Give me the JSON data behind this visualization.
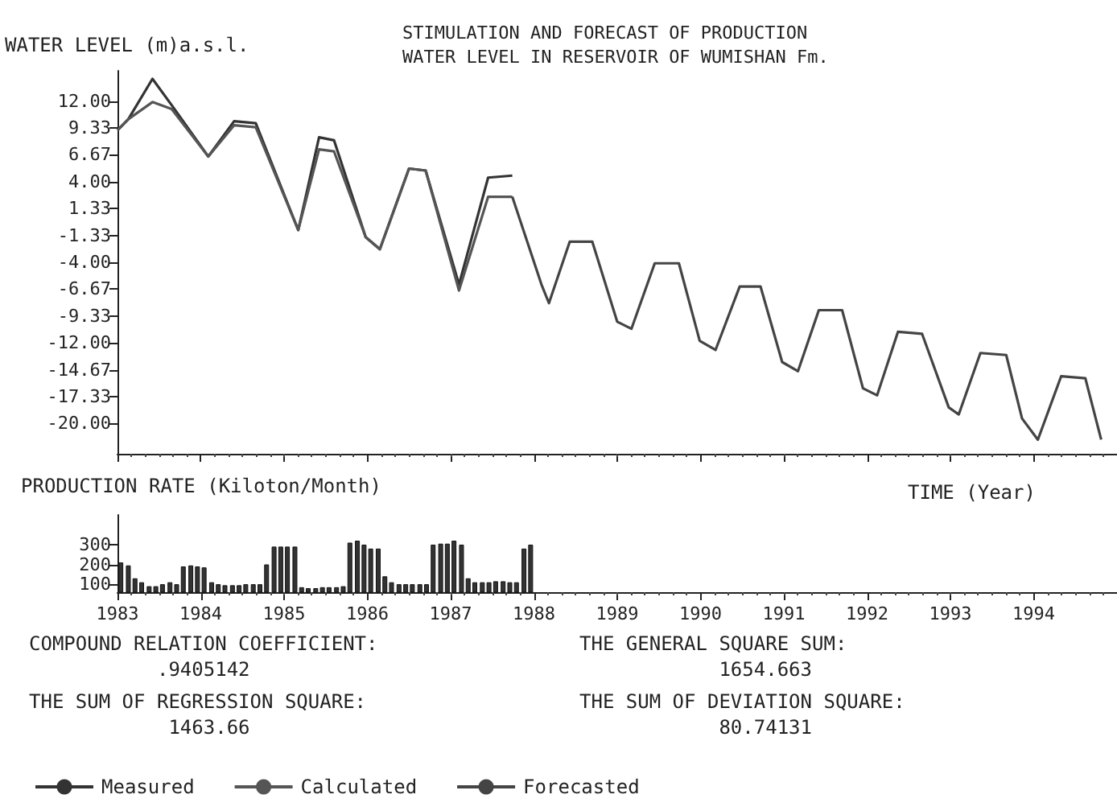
{
  "chart_data": [
    {
      "type": "line",
      "title": "STIMULATION AND FORECAST OF PRODUCTION\nWATER LEVEL IN RESERVOIR OF WUMISHAN Fm.",
      "ylabel": "WATER LEVEL (m)a.s.l.",
      "xlabel": "TIME (Year)",
      "xlim": [
        1983,
        1995
      ],
      "xticks": [
        1983,
        1984,
        1985,
        1986,
        1987,
        1988,
        1989,
        1990,
        1991,
        1992,
        1993,
        1994,
        1995
      ],
      "ylim": [
        -23,
        15
      ],
      "yticks": [
        {
          "value": 12,
          "label": "12.00"
        },
        {
          "value": 9.33,
          "label": "9.33"
        },
        {
          "value": 6.67,
          "label": "6.67"
        },
        {
          "value": 4,
          "label": "4.00"
        },
        {
          "value": 1.33,
          "label": "1.33"
        },
        {
          "value": -1.33,
          "label": "-1.33"
        },
        {
          "value": -4,
          "label": "-4.00"
        },
        {
          "value": -6.67,
          "label": "-6.67"
        },
        {
          "value": -9.33,
          "label": "-9.33"
        },
        {
          "value": -12,
          "label": "-12.00"
        },
        {
          "value": -14.67,
          "label": "-14.67"
        },
        {
          "value": -17.33,
          "label": "-17.33"
        },
        {
          "value": -20,
          "label": "-20.00"
        }
      ],
      "tick_labels": "y",
      "grid": false,
      "legend": "bottom left",
      "series": [
        {
          "name": "Measured",
          "color": "#333333",
          "x": [
            1983.0,
            1983.13,
            1983.42,
            1983.65,
            1984.09,
            1984.4,
            1984.66,
            1985.17,
            1985.42,
            1985.6,
            1985.98,
            1986.15,
            1986.5,
            1986.7,
            1987.1,
            1987.45,
            1987.74
          ],
          "values": [
            9.1,
            10.2,
            14.2,
            11.6,
            6.5,
            10.0,
            9.8,
            -0.8,
            8.4,
            8.1,
            -1.5,
            -2.7,
            5.3,
            5.1,
            -6.2,
            4.4,
            4.6
          ]
        },
        {
          "name": "Calculated",
          "color": "#555555",
          "x": [
            1983.0,
            1983.13,
            1983.42,
            1983.65,
            1984.09,
            1984.4,
            1984.66,
            1985.17,
            1985.42,
            1985.6,
            1985.98,
            1986.15,
            1986.5,
            1986.7,
            1987.1,
            1987.45,
            1987.74
          ],
          "values": [
            9.1,
            10.2,
            11.9,
            11.2,
            6.5,
            9.6,
            9.4,
            -0.8,
            7.2,
            7.0,
            -1.5,
            -2.7,
            5.3,
            5.1,
            -6.8,
            2.5,
            2.5
          ]
        },
        {
          "name": "Forecasted",
          "color": "#444444",
          "x": [
            1987.74,
            1988.09,
            1988.18,
            1988.43,
            1988.7,
            1989.0,
            1989.17,
            1989.45,
            1989.74,
            1989.99,
            1990.18,
            1990.47,
            1990.72,
            1990.98,
            1991.17,
            1991.42,
            1991.7,
            1991.95,
            1992.12,
            1992.37,
            1992.66,
            1992.98,
            1993.1,
            1993.36,
            1993.67,
            1993.86,
            1994.05,
            1994.33,
            1994.62,
            1994.81
          ],
          "values": [
            2.5,
            -6.2,
            -8.05,
            -1.95,
            -1.95,
            -9.9,
            -10.6,
            -4.1,
            -4.1,
            -11.8,
            -12.7,
            -6.4,
            -6.4,
            -13.9,
            -14.8,
            -8.75,
            -8.75,
            -16.5,
            -17.2,
            -10.9,
            -11.1,
            -18.4,
            -19.1,
            -13.0,
            -13.2,
            -19.5,
            -21.6,
            -15.3,
            -15.5,
            -21.6
          ]
        }
      ]
    },
    {
      "type": "bar",
      "ylabel": "PRODUCTION RATE (Kiloton/Month)",
      "xlim": [
        1983,
        1995
      ],
      "xticks": [
        1983,
        1984,
        1985,
        1986,
        1987,
        1988,
        1989,
        1990,
        1991,
        1992,
        1993,
        1994
      ],
      "ylim": [
        60,
        450
      ],
      "yticks": [
        100,
        200,
        300
      ],
      "grid": false,
      "x": [
        1983.04,
        1983.13,
        1983.21,
        1983.29,
        1983.38,
        1983.46,
        1983.54,
        1983.63,
        1983.71,
        1983.79,
        1983.88,
        1983.96,
        1984.04,
        1984.13,
        1984.21,
        1984.29,
        1984.38,
        1984.46,
        1984.54,
        1984.63,
        1984.71,
        1984.79,
        1984.88,
        1984.96,
        1985.04,
        1985.13,
        1985.21,
        1985.29,
        1985.38,
        1985.46,
        1985.54,
        1985.63,
        1985.71,
        1985.79,
        1985.88,
        1985.96,
        1986.04,
        1986.13,
        1986.21,
        1986.29,
        1986.38,
        1986.46,
        1986.54,
        1986.63,
        1986.71,
        1986.79,
        1986.88,
        1986.96,
        1987.04,
        1987.13,
        1987.21,
        1987.29,
        1987.38,
        1987.46,
        1987.54,
        1987.63,
        1987.71,
        1987.79,
        1987.88,
        1987.96
      ],
      "series": [
        {
          "color": "#333333",
          "values": [
            210,
            195,
            130,
            110,
            90,
            90,
            100,
            110,
            100,
            190,
            195,
            190,
            185,
            110,
            100,
            95,
            95,
            95,
            100,
            100,
            100,
            200,
            290,
            290,
            290,
            290,
            85,
            80,
            80,
            85,
            85,
            85,
            90,
            310,
            320,
            300,
            280,
            280,
            140,
            110,
            100,
            100,
            100,
            100,
            100,
            300,
            305,
            305,
            320,
            300,
            130,
            110,
            110,
            110,
            115,
            115,
            110,
            110,
            280,
            300
          ]
        }
      ],
      "annotations": [
        "COMPOUND RELATION COEFFICIENT:\n           .9405142",
        "THE GENERAL SQUARE SUM:\n            1654.663",
        "THE SUM OF REGRESSION SQUARE:\n            1463.66",
        "THE SUM OF DEVIATION SQUARE:\n            80.74131"
      ]
    }
  ]
}
